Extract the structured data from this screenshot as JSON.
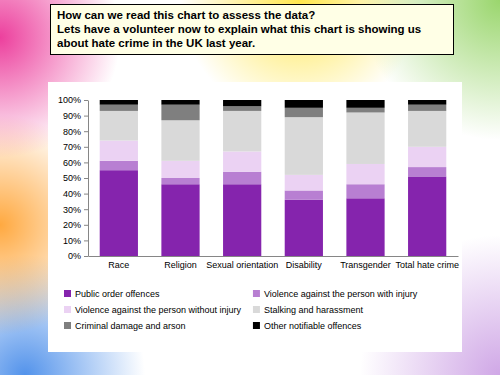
{
  "slide": {
    "heading": "How can we read this chart to assess the data?",
    "prompt": "Lets have a volunteer now to explain what this chart is showing us about hate crime in the UK last year."
  },
  "chart_data": {
    "type": "bar",
    "stacked": true,
    "grid": false,
    "legend": "bottom",
    "categories": [
      "Race",
      "Religion",
      "Sexual orientation",
      "Disability",
      "Transgender",
      "Total hate crime"
    ],
    "series": [
      {
        "name": "Public order offences",
        "color": "#8524ad",
        "values": [
          55,
          46,
          46,
          36,
          37,
          51
        ]
      },
      {
        "name": "Violence against the person with injury",
        "color": "#b87fd2",
        "values": [
          6,
          4,
          8,
          6,
          9,
          6
        ]
      },
      {
        "name": "Violence against the person without injury",
        "color": "#ebd2f3",
        "values": [
          13,
          11,
          13,
          10,
          13,
          13
        ]
      },
      {
        "name": "Stalking and harassment",
        "color": "#d9d9d9",
        "values": [
          19,
          26,
          26,
          37,
          33,
          23
        ]
      },
      {
        "name": "Criminal damage and arson",
        "color": "#7f7f7f",
        "values": [
          4,
          10,
          3,
          6,
          3,
          4
        ]
      },
      {
        "name": "Other notifiable offences",
        "color": "#000000",
        "values": [
          3,
          3,
          4,
          5,
          5,
          3
        ]
      }
    ],
    "ylim": [
      0,
      100
    ],
    "yticks": [
      {
        "value": 0,
        "label": "0%"
      },
      {
        "value": 10,
        "label": "10%"
      },
      {
        "value": 20,
        "label": "20%"
      },
      {
        "value": 30,
        "label": "30%"
      },
      {
        "value": 40,
        "label": "40%"
      },
      {
        "value": 50,
        "label": "50%"
      },
      {
        "value": 60,
        "label": "60%"
      },
      {
        "value": 70,
        "label": "70%"
      },
      {
        "value": 80,
        "label": "80%"
      },
      {
        "value": 90,
        "label": "90%"
      },
      {
        "value": 100,
        "label": "100%"
      }
    ]
  }
}
